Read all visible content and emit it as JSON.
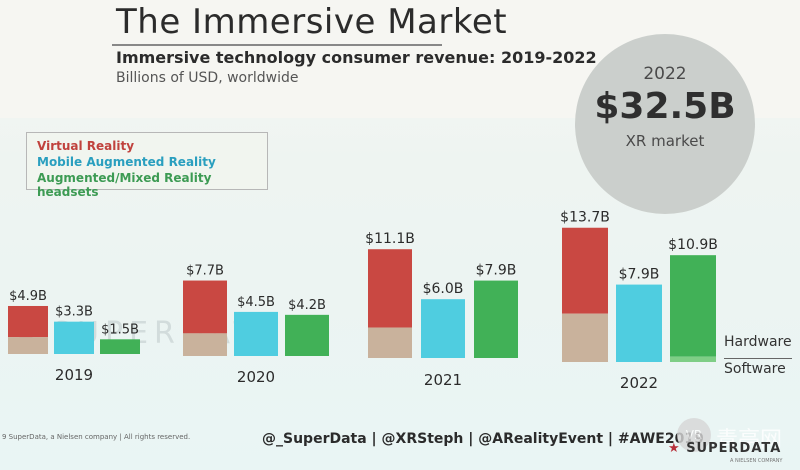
{
  "title": "The Immersive Market",
  "subtitle": "Immersive technology consumer revenue: 2019-2022",
  "unit_note": "Billions of USD, worldwide",
  "highlight": {
    "year": "2022",
    "amount": "$32.5B",
    "label": "XR market"
  },
  "legend": [
    {
      "name": "Virtual Reality",
      "color": "#c94842"
    },
    {
      "name": "Mobile Augmented Reality",
      "color": "#4fcde0"
    },
    {
      "name": "Augmented/Mixed Reality headsets",
      "color": "#41b157"
    }
  ],
  "side_labels": {
    "hardware": "Hardware",
    "software": "Software"
  },
  "watermark": "SUPERDATA",
  "footer": {
    "copyright": "9 SuperData, a Nielsen company | All rights reserved.",
    "handles": "@_SuperData  |  @XRSteph  |  @ARealityEvent  |  #AWE2019",
    "logo": "SUPERDATA",
    "logo_sub": "A NIELSEN COMPANY",
    "site_badge": "VR",
    "site_name": "青亭网"
  },
  "chart_data": {
    "type": "bar",
    "categories": [
      "2019",
      "2020",
      "2021",
      "2022"
    ],
    "series": [
      {
        "name": "Virtual Reality",
        "values": [
          4.9,
          7.7,
          11.1,
          13.7
        ],
        "labels": [
          "$4.9B",
          "$7.7B",
          "$11.1B",
          "$13.7B"
        ],
        "software_share": [
          0.35,
          0.3,
          0.28,
          0.36
        ]
      },
      {
        "name": "Mobile Augmented Reality",
        "values": [
          3.3,
          4.5,
          6.0,
          7.9
        ],
        "labels": [
          "$3.3B",
          "$4.5B",
          "$6.0B",
          "$7.9B"
        ],
        "software_share": [
          0,
          0,
          0,
          0
        ]
      },
      {
        "name": "Augmented/Mixed Reality headsets",
        "values": [
          1.5,
          4.2,
          7.9,
          10.9
        ],
        "labels": [
          "$1.5B",
          "$4.2B",
          "$7.9B",
          "$10.9B"
        ],
        "software_share": [
          0,
          0,
          0,
          0.05
        ]
      }
    ],
    "colors": {
      "vr_hardware": "#c94842",
      "vr_software": "#c9b29c",
      "mar": "#4fcde0",
      "ar": "#41b157",
      "ar_software": "#7fce86"
    }
  }
}
